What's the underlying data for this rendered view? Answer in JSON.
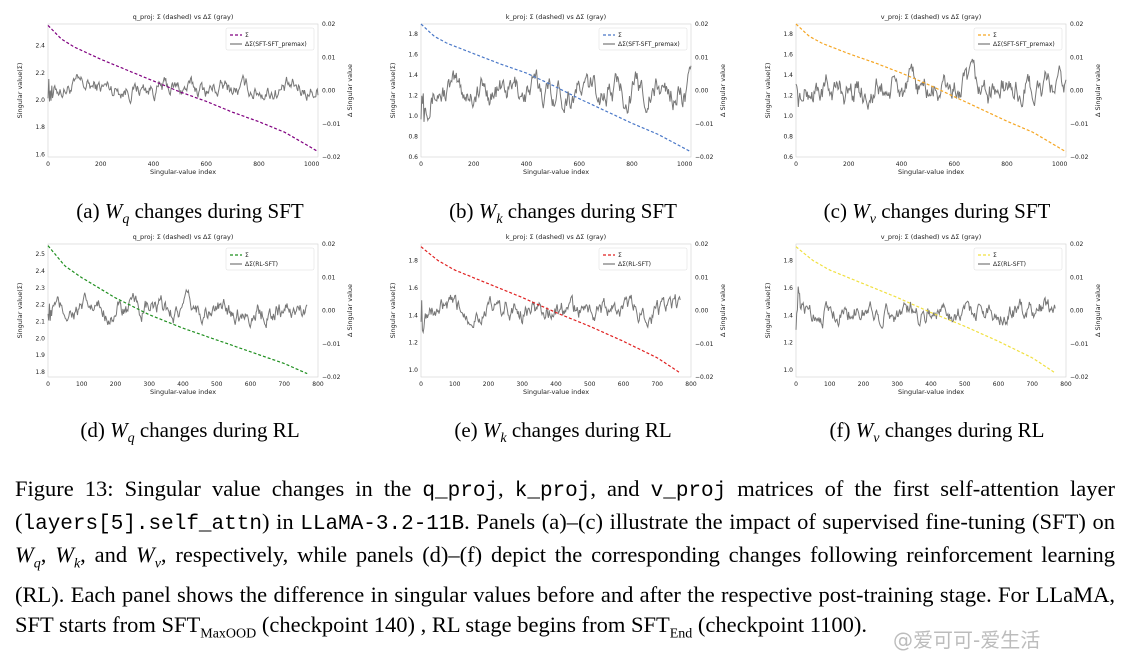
{
  "chart_data": [
    {
      "panel": "a",
      "type": "line",
      "title": "q_proj: Σ (dashed) vs ΔΣ (gray)",
      "xlabel": "Singular-value index",
      "ylabel": "Singular value(Σ)",
      "ylabel2": "Δ Singular value",
      "xlim": [
        0,
        1024
      ],
      "xticks": [
        0,
        200,
        400,
        600,
        800,
        1000
      ],
      "ylim": [
        1.58,
        2.56
      ],
      "yticks": [
        1.6,
        1.8,
        2.0,
        2.2,
        2.4
      ],
      "y2lim": [
        -0.02,
        0.02
      ],
      "y2ticks": [
        -0.02,
        -0.01,
        0.0,
        0.01,
        0.02
      ],
      "series": [
        {
          "name": "Σ",
          "color": "#800080",
          "dashed": true,
          "x": [
            0,
            50,
            100,
            200,
            300,
            400,
            500,
            600,
            700,
            800,
            900,
            1024
          ],
          "y": [
            2.55,
            2.45,
            2.39,
            2.3,
            2.22,
            2.14,
            2.06,
            1.99,
            1.91,
            1.84,
            1.76,
            1.62
          ]
        },
        {
          "name": "ΔΣ(SFT-SFT_premax)",
          "color": "#777777",
          "dashed": false,
          "x": [
            0,
            1024
          ],
          "y": [
            0.001,
            0.0
          ],
          "noise": 0.0022
        }
      ],
      "legend": "top-right"
    },
    {
      "panel": "b",
      "type": "line",
      "title": "k_proj: Σ (dashed) vs ΔΣ (gray)",
      "xlabel": "Singular-value index",
      "ylabel": "Singular value(Σ)",
      "ylabel2": "Δ Singular value",
      "xlim": [
        0,
        1024
      ],
      "xticks": [
        0,
        200,
        400,
        600,
        800,
        1000
      ],
      "ylim": [
        0.6,
        1.9
      ],
      "yticks": [
        0.6,
        0.8,
        1.0,
        1.2,
        1.4,
        1.6,
        1.8
      ],
      "y2lim": [
        -0.02,
        0.02
      ],
      "y2ticks": [
        -0.02,
        -0.01,
        0.0,
        0.01,
        0.02
      ],
      "series": [
        {
          "name": "Σ",
          "color": "#4a78c8",
          "dashed": true,
          "x": [
            0,
            50,
            100,
            200,
            300,
            400,
            500,
            600,
            700,
            800,
            900,
            1024
          ],
          "y": [
            1.9,
            1.78,
            1.71,
            1.61,
            1.51,
            1.42,
            1.3,
            1.17,
            1.05,
            0.93,
            0.82,
            0.65
          ]
        },
        {
          "name": "ΔΣ(SFT-SFT_premax)",
          "color": "#777777",
          "dashed": false,
          "x": [
            0,
            1024
          ],
          "y": [
            0.0,
            0.0
          ],
          "noise": 0.0035
        }
      ],
      "legend": "top-right"
    },
    {
      "panel": "c",
      "type": "line",
      "title": "v_proj: Σ (dashed) vs ΔΣ (gray)",
      "xlabel": "Singular-value index",
      "ylabel": "Singular value(Σ)",
      "ylabel2": "Δ Singular value",
      "xlim": [
        0,
        1024
      ],
      "xticks": [
        0,
        200,
        400,
        600,
        800,
        1000
      ],
      "ylim": [
        0.6,
        1.9
      ],
      "yticks": [
        0.6,
        0.8,
        1.0,
        1.2,
        1.4,
        1.6,
        1.8
      ],
      "y2lim": [
        -0.02,
        0.02
      ],
      "y2ticks": [
        -0.02,
        -0.01,
        0.0,
        0.01,
        0.02
      ],
      "series": [
        {
          "name": "Σ",
          "color": "#f5a623",
          "dashed": true,
          "x": [
            0,
            50,
            100,
            200,
            300,
            400,
            500,
            600,
            700,
            800,
            900,
            1024
          ],
          "y": [
            1.9,
            1.78,
            1.71,
            1.61,
            1.52,
            1.42,
            1.31,
            1.19,
            1.07,
            0.95,
            0.84,
            0.65
          ]
        },
        {
          "name": "ΔΣ(SFT-SFT_premax)",
          "color": "#777777",
          "dashed": false,
          "x": [
            0,
            1024
          ],
          "y": [
            0.0,
            0.0
          ],
          "noise": 0.0035
        }
      ],
      "legend": "top-right"
    },
    {
      "panel": "d",
      "type": "line",
      "title": "q_proj: Σ (dashed) vs ΔΣ (gray)",
      "xlabel": "Singular-value index",
      "ylabel": "Singular value(Σ)",
      "ylabel2": "Δ Singular value",
      "xlim": [
        0,
        800
      ],
      "xticks": [
        0,
        100,
        200,
        300,
        400,
        500,
        600,
        700,
        800
      ],
      "ylim": [
        1.77,
        2.56
      ],
      "yticks": [
        1.8,
        1.9,
        2.0,
        2.1,
        2.2,
        2.3,
        2.4,
        2.5
      ],
      "y2lim": [
        -0.02,
        0.02
      ],
      "y2ticks": [
        -0.02,
        -0.01,
        0.0,
        0.01,
        0.02
      ],
      "series": [
        {
          "name": "Σ",
          "color": "#1f8f1f",
          "dashed": true,
          "x": [
            0,
            50,
            100,
            200,
            300,
            400,
            500,
            600,
            700,
            768
          ],
          "y": [
            2.55,
            2.43,
            2.36,
            2.24,
            2.14,
            2.06,
            1.99,
            1.92,
            1.85,
            1.79
          ]
        },
        {
          "name": "ΔΣ(RL-SFT)",
          "color": "#777777",
          "dashed": false,
          "x": [
            0,
            768
          ],
          "y": [
            0.0,
            0.0
          ],
          "noise": 0.0025
        }
      ],
      "legend": "top-right"
    },
    {
      "panel": "e",
      "type": "line",
      "title": "k_proj: Σ (dashed) vs ΔΣ (gray)",
      "xlabel": "Singular-value index",
      "ylabel": "Singular value(Σ)",
      "ylabel2": "Δ Singular value",
      "xlim": [
        0,
        800
      ],
      "xticks": [
        0,
        100,
        200,
        300,
        400,
        500,
        600,
        700,
        800
      ],
      "ylim": [
        0.95,
        1.92
      ],
      "yticks": [
        1.0,
        1.2,
        1.4,
        1.6,
        1.8
      ],
      "y2lim": [
        -0.02,
        0.02
      ],
      "y2ticks": [
        -0.02,
        -0.01,
        0.0,
        0.01,
        0.02
      ],
      "series": [
        {
          "name": "Σ",
          "color": "#e02020",
          "dashed": true,
          "x": [
            0,
            50,
            100,
            200,
            300,
            400,
            500,
            600,
            700,
            768
          ],
          "y": [
            1.9,
            1.8,
            1.73,
            1.63,
            1.53,
            1.42,
            1.32,
            1.21,
            1.09,
            0.98
          ]
        },
        {
          "name": "ΔΣ(RL-SFT)",
          "color": "#777777",
          "dashed": false,
          "x": [
            0,
            768
          ],
          "y": [
            0.0,
            0.0
          ],
          "noise": 0.0025
        }
      ],
      "legend": "top-right"
    },
    {
      "panel": "f",
      "type": "line",
      "title": "v_proj: Σ (dashed) vs ΔΣ (gray)",
      "xlabel": "Singular-value index",
      "ylabel": "Singular value(Σ)",
      "ylabel2": "Δ Singular value",
      "xlim": [
        0,
        800
      ],
      "xticks": [
        0,
        100,
        200,
        300,
        400,
        500,
        600,
        700,
        800
      ],
      "ylim": [
        0.95,
        1.92
      ],
      "yticks": [
        1.0,
        1.2,
        1.4,
        1.6,
        1.8
      ],
      "y2lim": [
        -0.02,
        0.02
      ],
      "y2ticks": [
        -0.02,
        -0.01,
        0.0,
        0.01,
        0.02
      ],
      "series": [
        {
          "name": "Σ",
          "color": "#f0e040",
          "dashed": true,
          "x": [
            0,
            50,
            100,
            200,
            300,
            400,
            500,
            600,
            700,
            768
          ],
          "y": [
            1.9,
            1.8,
            1.73,
            1.63,
            1.53,
            1.42,
            1.32,
            1.21,
            1.09,
            0.98
          ]
        },
        {
          "name": "ΔΣ(RL-SFT)",
          "color": "#777777",
          "dashed": false,
          "x": [
            0,
            768
          ],
          "y": [
            0.0,
            0.0
          ],
          "noise": 0.0025
        }
      ],
      "legend": "top-right"
    }
  ],
  "captions": {
    "a": {
      "prefix": "(a) ",
      "sym": "W",
      "sub": "q",
      "suffix": " changes during SFT"
    },
    "b": {
      "prefix": "(b) ",
      "sym": "W",
      "sub": "k",
      "suffix": " changes during SFT"
    },
    "c": {
      "prefix": "(c) ",
      "sym": "W",
      "sub": "v",
      "suffix": " changes during SFT"
    },
    "d": {
      "prefix": "(d) ",
      "sym": "W",
      "sub": "q",
      "suffix": " changes during RL"
    },
    "e": {
      "prefix": "(e) ",
      "sym": "W",
      "sub": "k",
      "suffix": " changes during RL"
    },
    "f": {
      "prefix": "(f) ",
      "sym": "W",
      "sub": "v",
      "suffix": " changes during RL"
    }
  },
  "figure_caption": {
    "t1": "Figure 13: Singular value changes in the ",
    "m1": "q_proj",
    "t2": ", ",
    "m2": "k_proj",
    "t3": ", and ",
    "m3": "v_proj",
    "t4": " matrices of the first self-attention layer (",
    "m4": "layers[5].self_attn",
    "t5": ") in ",
    "m5": "LLaMA-3.2-11B",
    "t6": ". Panels (a)–(c) illustrate the impact of supervised fine-tuning (SFT) on ",
    "w1": "W",
    "s1": "q",
    "t7": ", ",
    "w2": "W",
    "s2": "k",
    "t8": ", and ",
    "w3": "W",
    "s3": "v",
    "t9": ", respectively, while panels (d)–(f) depict the corresponding changes following reinforcement learning (RL). Each panel shows the difference in singular values before and after the respective post-training stage. For LLaMA, SFT starts from SFT",
    "sub1": "MaxOOD",
    "t10": " (checkpoint 140) , RL stage begins from SFT",
    "sub2": "End",
    "t11": " (checkpoint 1100)."
  },
  "watermark": "@爱可可-爱生活"
}
